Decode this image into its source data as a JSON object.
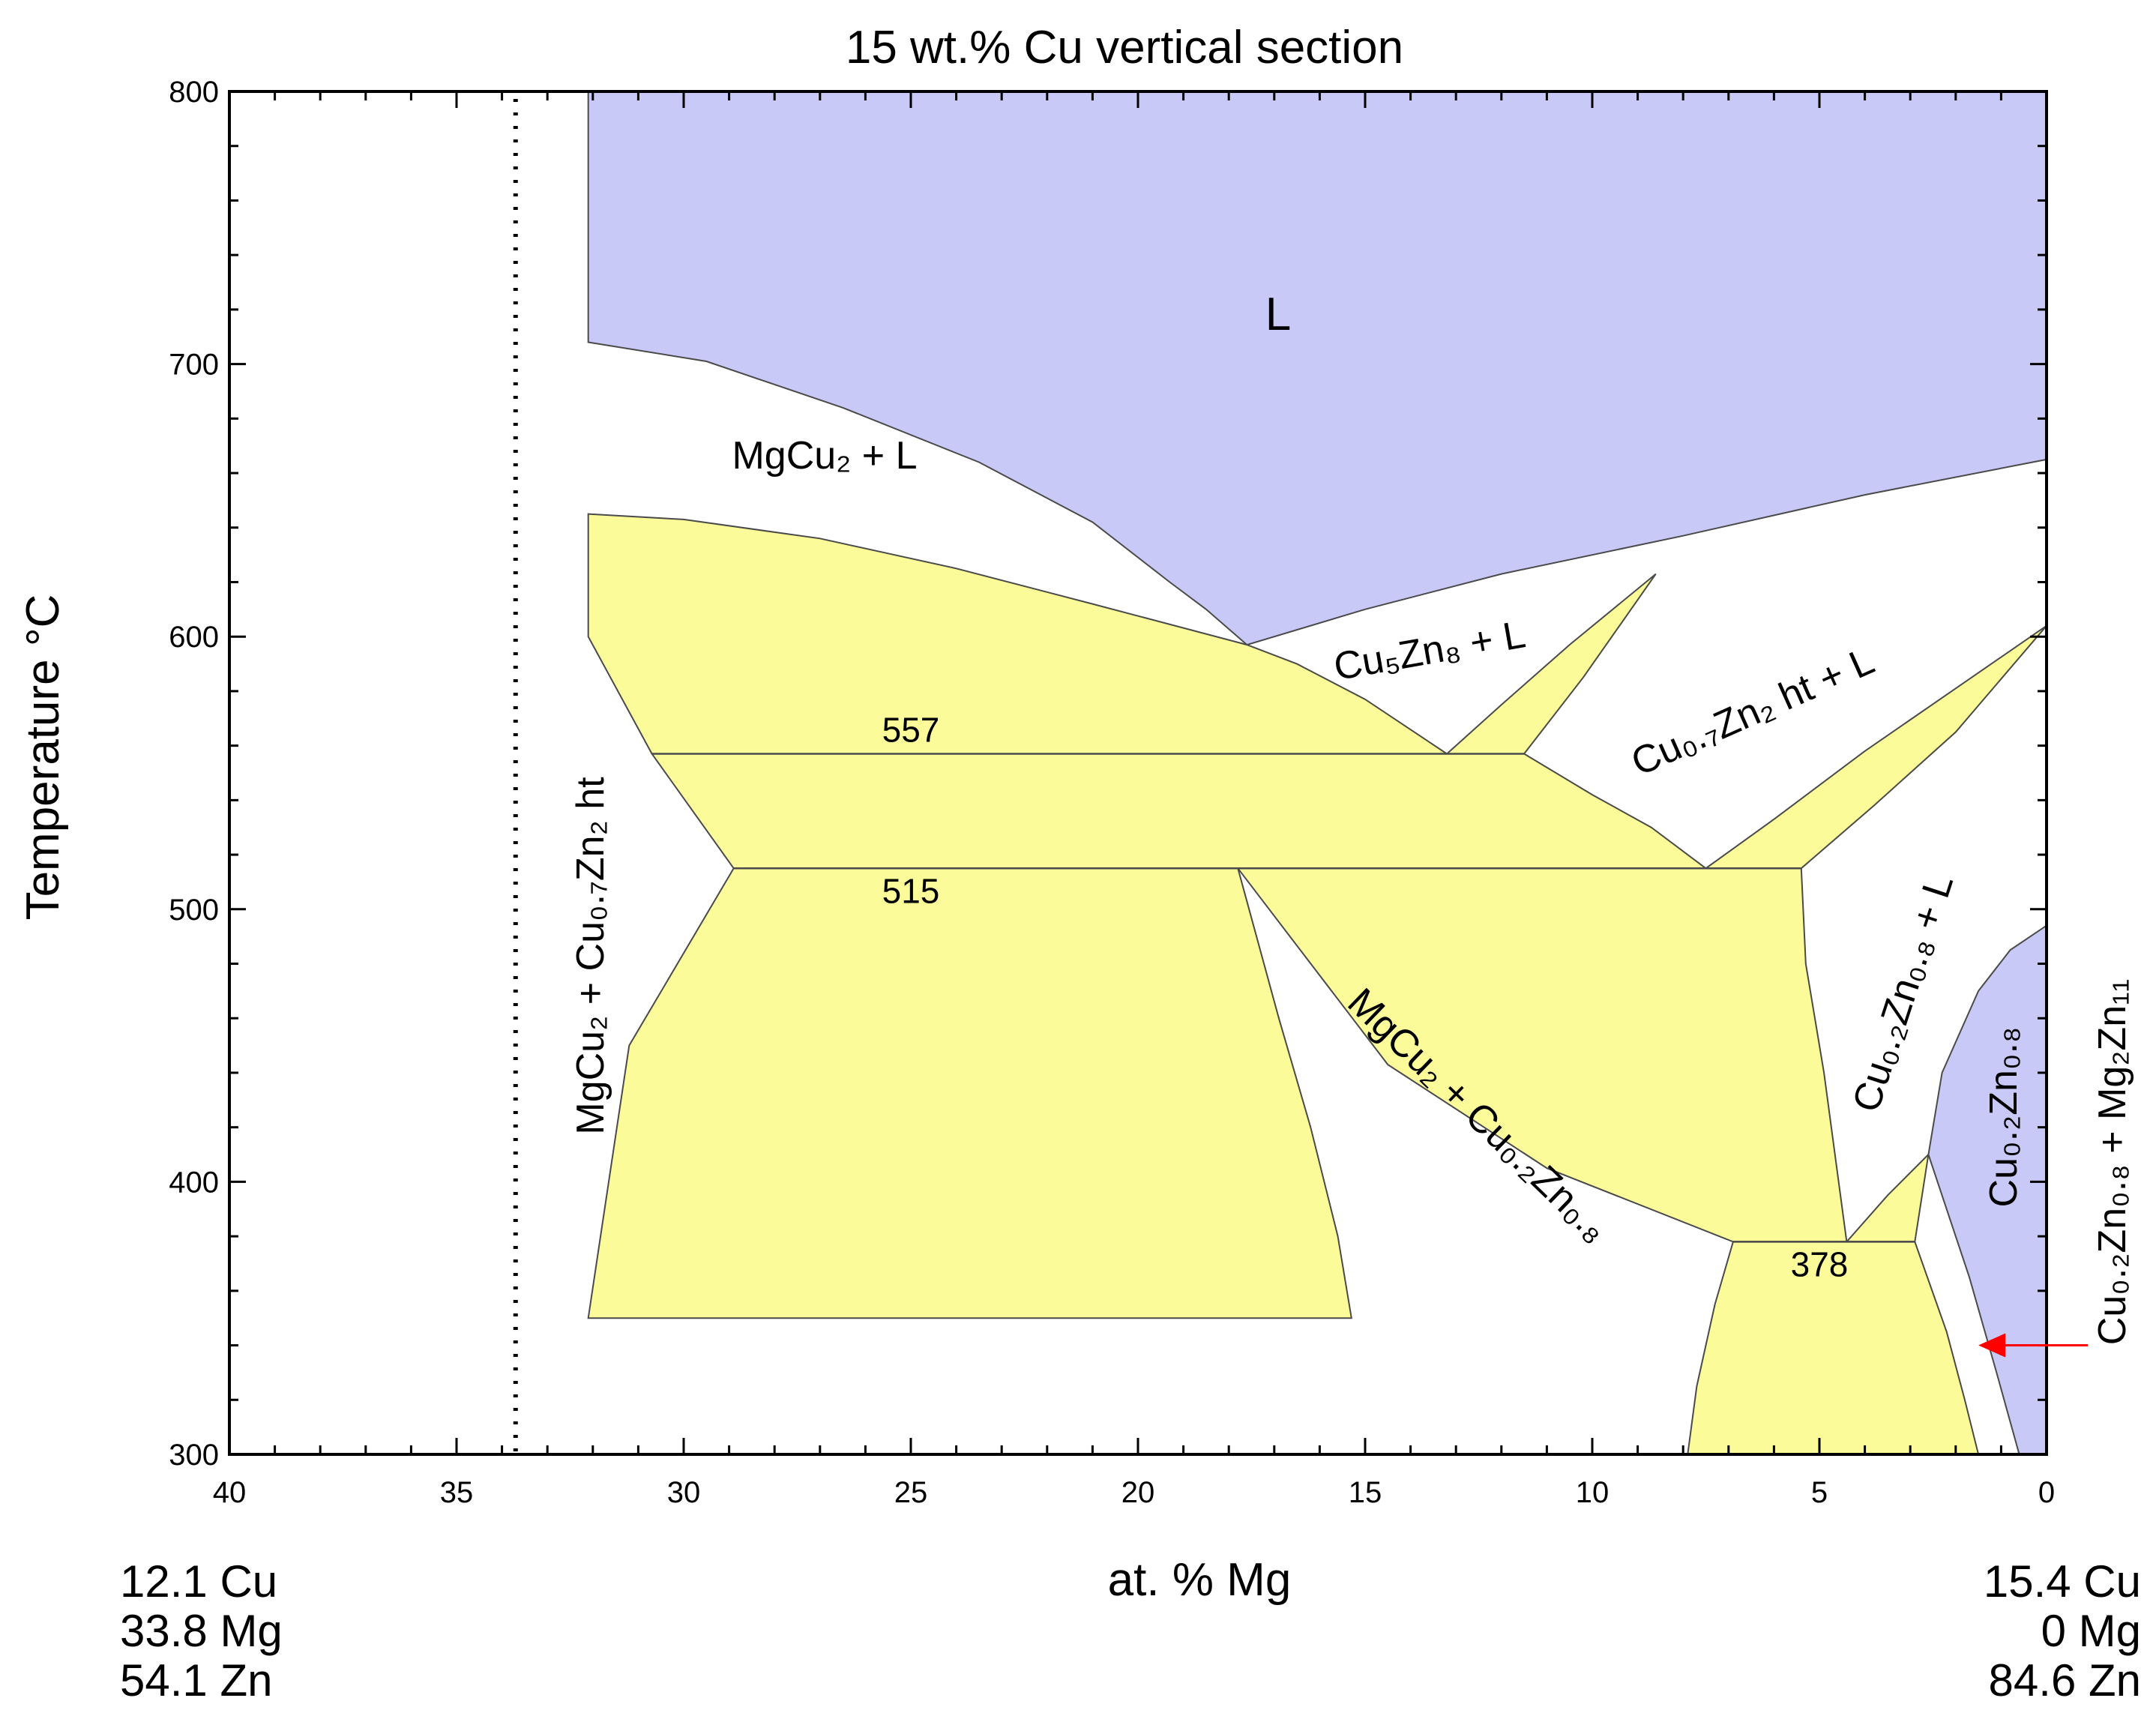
{
  "chart_data": {
    "type": "phase-diagram",
    "title": "15 wt.% Cu vertical section",
    "xlabel": "at. %  Mg",
    "ylabel": "Temperature  °C",
    "xlim": [
      40,
      0
    ],
    "ylim": [
      300,
      800
    ],
    "xticks": [
      40,
      35,
      30,
      25,
      20,
      15,
      10,
      5,
      0
    ],
    "yticks": [
      300,
      400,
      500,
      600,
      700,
      800
    ],
    "colors": {
      "liquid": "#c9c9f8",
      "three_phase": "#fbfb9a",
      "line": "#4a4a4a",
      "arrow": "#ff0000"
    },
    "left_composition": [
      "12.1 Cu",
      "33.8 Mg",
      "54.1 Zn"
    ],
    "right_composition": [
      "15.4 Cu",
      "0 Mg",
      "84.6 Zn"
    ],
    "dotted_line_x": 33.7,
    "invariants": [
      {
        "temperature": 557,
        "label": "557",
        "x_range": [
          30.7,
          11.5
        ]
      },
      {
        "temperature": 515,
        "label": "515",
        "x_range": [
          28.9,
          5.4
        ]
      },
      {
        "temperature": 378,
        "label": "378",
        "x_range": [
          6.9,
          2.9
        ]
      }
    ],
    "regions": {
      "liquid": {
        "label": "L",
        "boundary": [
          [
            32.1,
            800
          ],
          [
            0,
            800
          ],
          [
            0,
            665
          ],
          [
            4,
            652
          ],
          [
            8,
            637
          ],
          [
            12,
            623
          ],
          [
            15,
            610
          ],
          [
            17.6,
            597
          ],
          [
            18.5,
            610
          ],
          [
            19.3,
            620
          ],
          [
            21,
            642
          ],
          [
            23.5,
            664
          ],
          [
            26.5,
            684
          ],
          [
            29.5,
            701
          ],
          [
            32.1,
            708
          ]
        ]
      },
      "cu02zn08": {
        "label": "Cu0.2Zn0.8",
        "boundary": [
          [
            0,
            494
          ],
          [
            0,
            300
          ],
          [
            0.6,
            300
          ],
          [
            1.1,
            330
          ],
          [
            1.7,
            365
          ],
          [
            2.6,
            410
          ],
          [
            2.3,
            440
          ],
          [
            1.5,
            470
          ],
          [
            0.8,
            485
          ]
        ]
      },
      "yellow": [
        [
          [
            32.1,
            645
          ],
          [
            30,
            643
          ],
          [
            27,
            636
          ],
          [
            24,
            625
          ],
          [
            21,
            612
          ],
          [
            17.6,
            597
          ],
          [
            16.5,
            590
          ],
          [
            15,
            577
          ],
          [
            13.2,
            557
          ],
          [
            30.7,
            557
          ],
          [
            32.1,
            600
          ]
        ],
        [
          [
            30.7,
            557
          ],
          [
            11.5,
            557
          ],
          [
            10,
            542
          ],
          [
            8.7,
            530
          ],
          [
            7.5,
            515
          ],
          [
            28.9,
            515
          ]
        ],
        [
          [
            32.1,
            350
          ],
          [
            15.3,
            350
          ],
          [
            15.6,
            380
          ],
          [
            16.2,
            420
          ],
          [
            16.9,
            460
          ],
          [
            17.8,
            515
          ],
          [
            28.9,
            515
          ],
          [
            31.2,
            450
          ],
          [
            32.1,
            350
          ]
        ],
        [
          [
            17.8,
            515
          ],
          [
            5.4,
            515
          ],
          [
            5.3,
            480
          ],
          [
            4.9,
            440
          ],
          [
            4.4,
            378
          ],
          [
            6.9,
            378
          ],
          [
            11,
            405
          ],
          [
            14.5,
            443
          ],
          [
            17.8,
            515
          ]
        ],
        [
          [
            13.2,
            557
          ],
          [
            11.5,
            557
          ],
          [
            10.2,
            585
          ],
          [
            8.6,
            623
          ],
          [
            10.5,
            597
          ],
          [
            12,
            575
          ]
        ],
        [
          [
            7.5,
            515
          ],
          [
            5.4,
            515
          ],
          [
            3.8,
            538
          ],
          [
            2,
            565
          ],
          [
            0,
            604
          ],
          [
            2,
            581
          ],
          [
            4,
            558
          ],
          [
            6,
            533
          ]
        ],
        [
          [
            4.4,
            378
          ],
          [
            2.9,
            378
          ],
          [
            2.6,
            410
          ],
          [
            3.5,
            395
          ]
        ],
        [
          [
            6.9,
            378
          ],
          [
            2.9,
            378
          ],
          [
            2.2,
            345
          ],
          [
            1.8,
            320
          ],
          [
            1.5,
            300
          ],
          [
            7.9,
            300
          ],
          [
            7.7,
            325
          ],
          [
            7.3,
            355
          ]
        ]
      ]
    },
    "labels": {
      "L": "L",
      "mgcu2_l": "MgCu₂ + L",
      "cu5zn8_l": "Cu₅Zn₈ + L",
      "cu07zn2_ht_l": "Cu₀.₇Zn₂ ht + L",
      "mgcu2_cu07zn2_ht": "MgCu₂ + Cu₀.₇Zn₂ ht",
      "mgcu2_cu02zn08": "MgCu₂ + Cu₀.₂Zn₀.₈",
      "cu02zn08_l": "Cu₀.₂Zn₀.₈ + L",
      "cu02zn08": "Cu₀.₂Zn₀.₈",
      "cu02zn08_mg2zn11": "Cu₀.₂Zn₀.₈ + Mg₂Zn₁₁",
      "iso_557": "557",
      "iso_515": "515",
      "iso_378": "378"
    },
    "arrow": {
      "from": [
        0,
        340
      ],
      "to": [
        1.5,
        340
      ]
    }
  }
}
